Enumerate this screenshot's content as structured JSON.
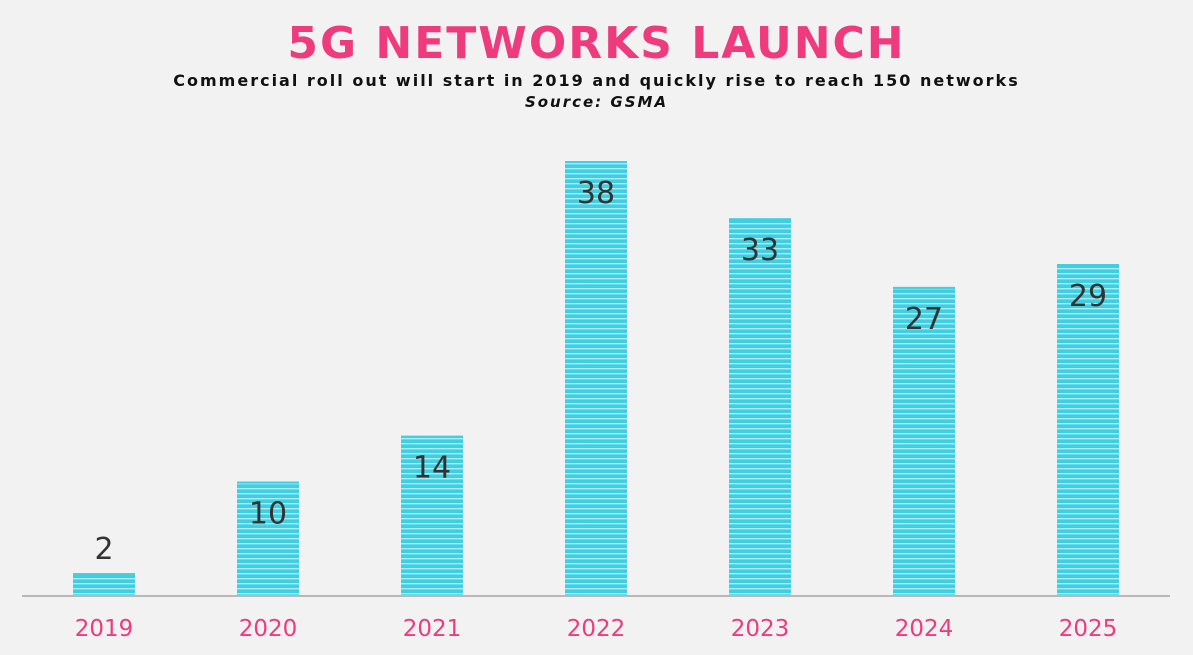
{
  "chart_data": {
    "type": "bar",
    "title": "5G NETWORKS LAUNCH",
    "subtitle": "Commercial roll out will start in 2019 and quickly rise to reach  150 networks",
    "source": "Source: GSMA",
    "categories": [
      "2019",
      "2020",
      "2021",
      "2022",
      "2023",
      "2024",
      "2025"
    ],
    "values": [
      2,
      10,
      14,
      38,
      33,
      27,
      29
    ],
    "xlabel": "",
    "ylabel": "",
    "ylim": [
      0,
      40
    ],
    "grid": false,
    "legend": "none",
    "data_labels": true
  },
  "colors": {
    "title": "#ee3b7e",
    "tick_labels": "#ee3b7e",
    "bar": "#40cfe0",
    "bar_stripe": "#a9ecf3",
    "axis": "#b8b8b8",
    "background": "#f2f2f2"
  }
}
